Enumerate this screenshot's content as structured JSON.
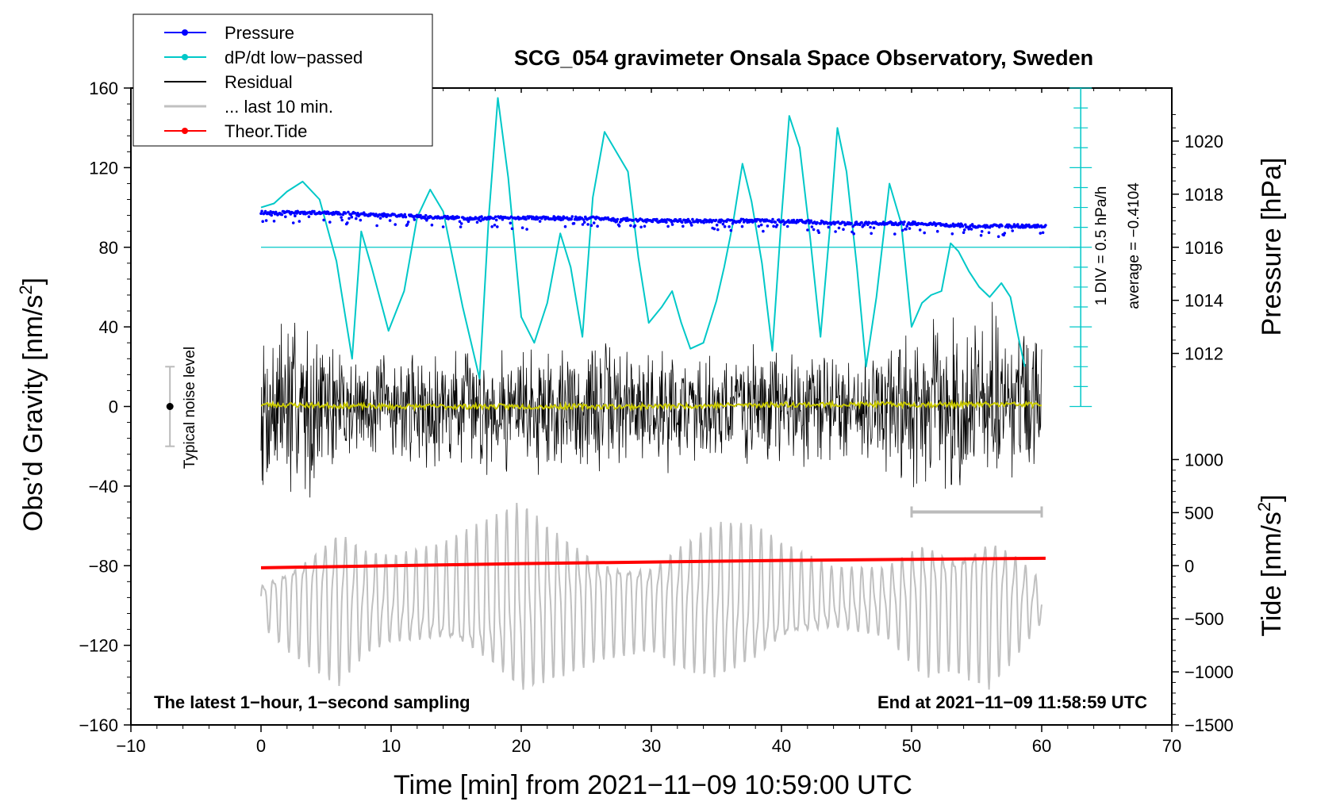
{
  "chart_data": {
    "type": "line",
    "title": "SCG_054 gravimeter Onsala Space Observatory, Sweden",
    "xlabel": "Time [min] from 2021−11−09 10:59:00 UTC",
    "ylabel_left": "Obs’d Gravity [nm/s²]",
    "ylabel_left_base": "Obs’d Gravity [nm/s",
    "ylabel_right_top": "Pressure [hPa]",
    "ylabel_right_bottom": "Tide [nm/s²]",
    "ylabel_right_bottom_base": "Tide [nm/s",
    "unit_exponent": "2",
    "xlim": [
      -10,
      70
    ],
    "ylim": [
      -160,
      160
    ],
    "x_ticks": [
      -10,
      0,
      10,
      20,
      30,
      40,
      50,
      60,
      70
    ],
    "x_tick_labels": [
      "−10",
      "0",
      "10",
      "20",
      "30",
      "40",
      "50",
      "60",
      "70"
    ],
    "y_ticks": [
      -160,
      -120,
      -80,
      -40,
      0,
      40,
      80,
      120,
      160
    ],
    "y_tick_labels": [
      "−160",
      "−120",
      "−80",
      "−40",
      "0",
      "40",
      "80",
      "120",
      "160"
    ],
    "pressure_axis": {
      "ticks": [
        1012,
        1014,
        1016,
        1018,
        1020
      ],
      "tick_labels": [
        "1012",
        "1014",
        "1016",
        "1018",
        "1020"
      ],
      "ref": {
        "hpa": 1016,
        "gravity": 80
      },
      "scale_gravity_per_hpa": 13.333
    },
    "tide_axis": {
      "ticks": [
        -1500,
        -1000,
        -500,
        0,
        500,
        1000
      ],
      "tick_labels": [
        "−1500",
        "−1000",
        "−500",
        "0",
        "500",
        "1000"
      ],
      "ref": {
        "tide": 0,
        "gravity": -80
      },
      "scale_gravity_per_unit": 0.05333
    },
    "dpdt_scale": {
      "label": "1 DIV = 0.5 hPa/h",
      "average_label": "average = −0.4104",
      "x": 63,
      "y_range": [
        0,
        160
      ],
      "divisions": 16,
      "baseline_y": 80
    },
    "noise_bar": {
      "label": "Typical noise level",
      "x": -7,
      "y_center": 0,
      "half_range": 20
    },
    "last10_marker": {
      "x_range": [
        50,
        60
      ],
      "y": -53
    },
    "notes": {
      "left": "The latest 1−hour, 1−second sampling",
      "right": "End at 2021−11−09 11:58:59 UTC"
    },
    "legend": [
      {
        "label": "Pressure",
        "color": "#0000ff",
        "marker": true
      },
      {
        "label": "dP/dt low−passed",
        "color": "#00c8c8",
        "marker": true
      },
      {
        "label": "Residual",
        "color": "#000000",
        "marker": false
      },
      {
        "label": "... last 10 min.",
        "color": "#c0c0c0",
        "marker": false
      },
      {
        "label": "Theor.Tide",
        "color": "#ff0000",
        "marker": true
      }
    ],
    "series": [
      {
        "name": "Pressure",
        "unit": "hPa",
        "color": "#0000ff",
        "x": [
          0,
          5,
          10,
          15,
          20,
          25,
          30,
          35,
          40,
          45,
          50,
          55,
          60
        ],
        "values": [
          1017.3,
          1017.3,
          1017.2,
          1017.1,
          1017.1,
          1017.1,
          1017.0,
          1017.0,
          1017.0,
          1016.9,
          1016.9,
          1016.8,
          1016.8
        ]
      },
      {
        "name": "dP/dt low-passed",
        "unit": "gravity-axis equivalent",
        "color": "#00c8c8",
        "x": [
          0,
          1,
          2,
          3.2,
          4.5,
          5.8,
          7,
          7.7,
          8.5,
          9.8,
          11,
          12,
          13,
          14,
          15.5,
          16.8,
          17.5,
          18.2,
          19,
          20,
          21,
          22,
          23,
          23.8,
          24.7,
          25.5,
          26.4,
          27.3,
          28.2,
          29,
          29.8,
          30.8,
          31.6,
          32.3,
          33,
          34,
          35,
          35.6,
          36.3,
          37,
          37.7,
          38.5,
          39.3,
          40,
          40.6,
          41.4,
          42.2,
          43,
          43.7,
          44.3,
          45,
          45.8,
          46.5,
          47.3,
          48.3,
          49.2,
          50,
          50.8,
          51.5,
          52.3,
          53,
          53.6,
          54.4,
          55.2,
          56,
          56.9,
          57.6,
          58.2,
          58.7
        ],
        "values": [
          100,
          102,
          108,
          113,
          104,
          73,
          24,
          88,
          70,
          38,
          58,
          95,
          109,
          98,
          50,
          14,
          95,
          155,
          115,
          45,
          32,
          52,
          87,
          70,
          35,
          105,
          138,
          128,
          118,
          75,
          42,
          50,
          58,
          42,
          29,
          32,
          53,
          70,
          93,
          122,
          103,
          72,
          28,
          95,
          146,
          130,
          85,
          35,
          88,
          140,
          118,
          70,
          20,
          55,
          112,
          92,
          40,
          52,
          56,
          58,
          82,
          78,
          68,
          60,
          55,
          62,
          55,
          35,
          20
        ]
      },
      {
        "name": "Residual",
        "unit": "nm/s²",
        "color": "#000000",
        "x_range": [
          0,
          60
        ],
        "envelope_x": [
          0,
          2,
          4,
          6,
          8,
          10,
          14,
          18,
          22,
          26,
          30,
          34,
          38,
          42,
          46,
          50,
          53,
          56,
          60
        ],
        "envelope_amp": [
          45,
          60,
          45,
          35,
          30,
          30,
          35,
          35,
          40,
          38,
          35,
          32,
          34,
          34,
          30,
          45,
          50,
          55,
          38
        ]
      },
      {
        "name": "Residual smoothed",
        "unit": "nm/s²",
        "color": "#c8c800",
        "x": [
          0,
          10,
          20,
          30,
          40,
          50,
          60
        ],
        "values": [
          1,
          0,
          0,
          0,
          1,
          1,
          1
        ]
      },
      {
        "name": "... last 10 min.",
        "unit": "nm/s²",
        "color": "#c0c0c0",
        "x_range": [
          0,
          60
        ],
        "center": -98,
        "envelope_x": [
          0,
          2,
          4,
          6,
          8,
          10,
          14,
          18,
          20,
          22,
          26,
          30,
          32,
          35,
          38,
          40,
          44,
          48,
          51,
          53,
          56,
          58,
          60
        ],
        "envelope_amp": [
          12,
          25,
          35,
          45,
          30,
          25,
          30,
          45,
          55,
          45,
          30,
          25,
          35,
          45,
          40,
          30,
          18,
          20,
          40,
          35,
          45,
          30,
          12
        ]
      },
      {
        "name": "Theor.Tide",
        "unit": "nm/s²",
        "color": "#ff0000",
        "x": [
          0,
          10,
          20,
          30,
          40,
          50,
          60.3
        ],
        "values": [
          -20,
          0,
          20,
          35,
          50,
          60,
          70
        ]
      }
    ]
  }
}
